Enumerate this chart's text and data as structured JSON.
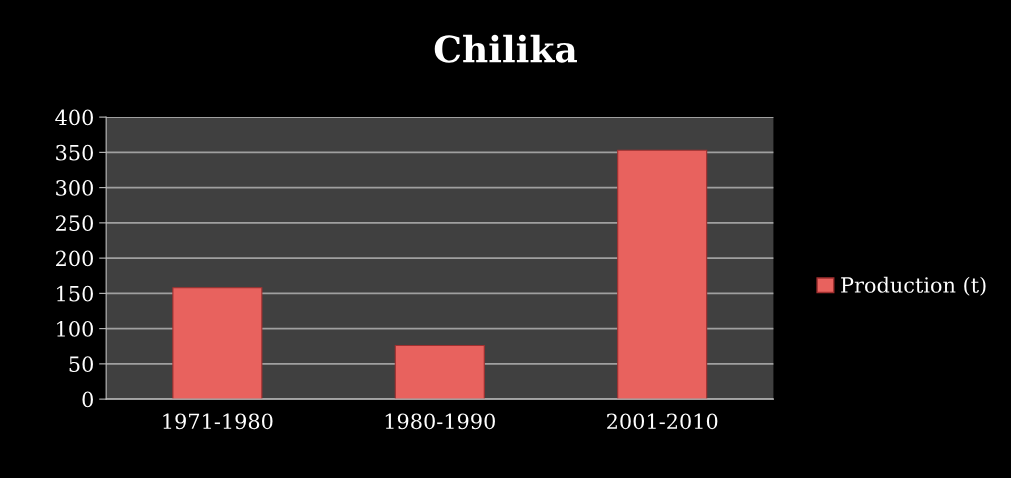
{
  "chart_data": {
    "type": "bar",
    "title": "Chilika",
    "categories": [
      "1971-1980",
      "1980-1990",
      "2001-2010"
    ],
    "series": [
      {
        "name": "Production (t)",
        "color": "#e8625e",
        "values": [
          158,
          76,
          353
        ]
      }
    ],
    "ylim": [
      0,
      400
    ],
    "yticks": [
      0,
      50,
      100,
      150,
      200,
      250,
      300,
      350,
      400
    ],
    "grid": "y",
    "legend": "right"
  }
}
